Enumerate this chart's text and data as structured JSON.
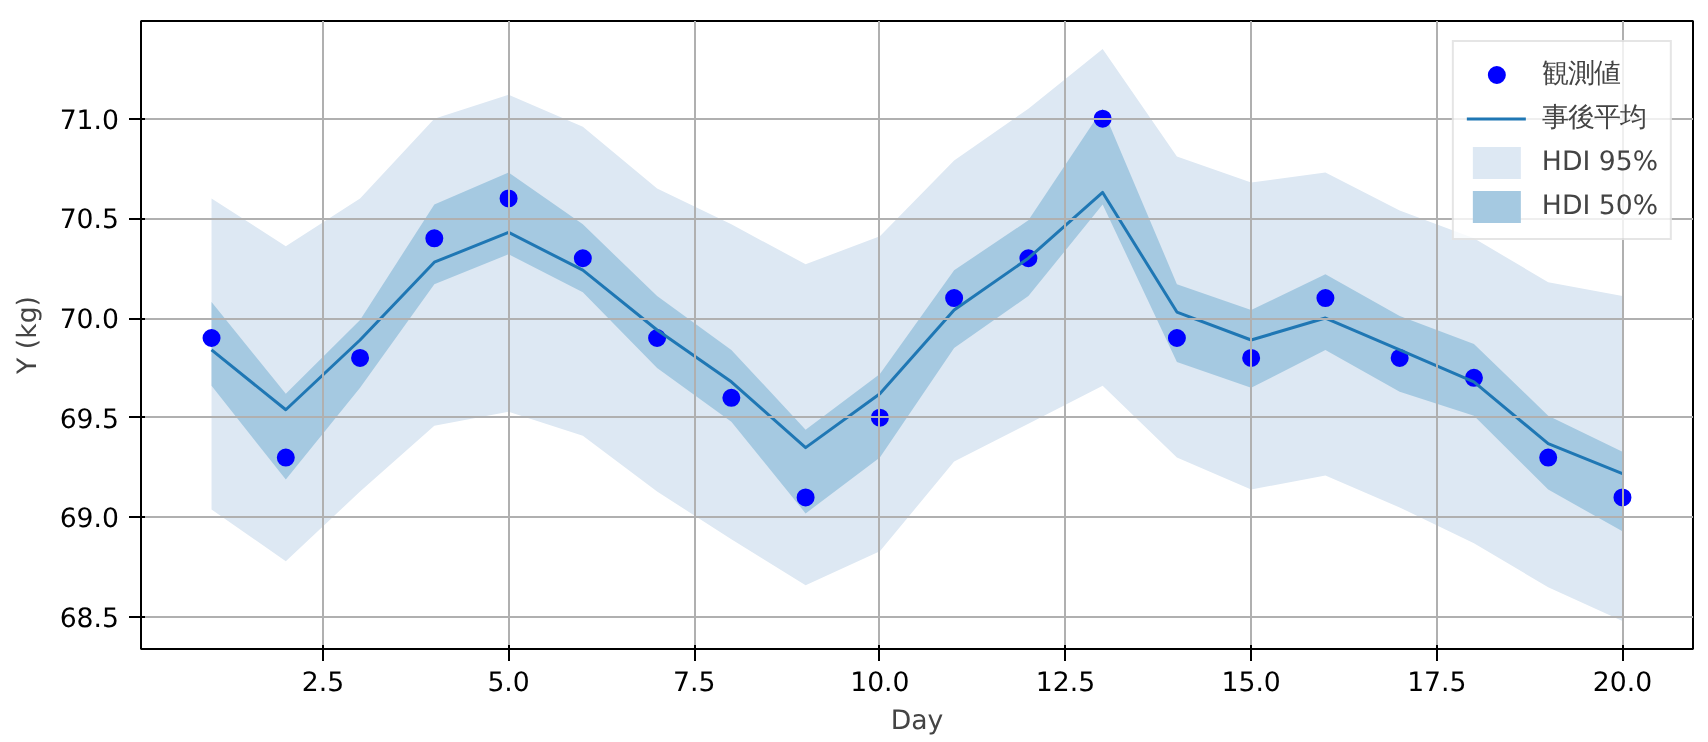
{
  "chart_data": {
    "type": "line",
    "xlabel": "Day",
    "ylabel": "Y (kg)",
    "x": [
      1,
      2,
      3,
      4,
      5,
      6,
      7,
      8,
      9,
      10,
      11,
      12,
      13,
      14,
      15,
      16,
      17,
      18,
      19,
      20
    ],
    "series": [
      {
        "name": "観測値",
        "type": "scatter",
        "color": "#0000ff",
        "marker": "circle",
        "values": [
          69.9,
          69.3,
          69.8,
          70.4,
          70.6,
          70.3,
          69.9,
          69.6,
          69.1,
          69.5,
          70.1,
          70.3,
          71.0,
          69.9,
          69.8,
          70.1,
          69.8,
          69.7,
          69.3,
          69.1
        ]
      },
      {
        "name": "事後平均",
        "color": "#1f77b4",
        "values": [
          69.84,
          69.54,
          69.89,
          70.28,
          70.43,
          70.24,
          69.94,
          69.68,
          69.35,
          69.62,
          70.04,
          70.3,
          70.63,
          70.03,
          69.89,
          70.0,
          69.84,
          69.68,
          69.37,
          69.22
        ]
      },
      {
        "name": "HDI 95%",
        "color": "#dde8f3",
        "values": [
          null,
          null,
          null,
          null,
          null,
          null,
          null,
          null,
          null,
          null,
          null,
          null,
          null,
          null,
          null,
          null,
          null,
          null,
          null,
          null
        ],
        "upper": [
          70.6,
          70.36,
          70.6,
          71.0,
          71.12,
          70.96,
          70.65,
          70.47,
          70.27,
          70.41,
          70.79,
          71.05,
          71.35,
          70.81,
          70.68,
          70.73,
          70.54,
          70.4,
          70.18,
          70.11
        ],
        "lower": [
          69.04,
          68.78,
          69.13,
          69.46,
          69.53,
          69.41,
          69.13,
          68.89,
          68.66,
          68.83,
          69.28,
          69.47,
          69.66,
          69.3,
          69.14,
          69.21,
          69.05,
          68.87,
          68.65,
          68.48
        ]
      },
      {
        "name": "HDI 50%",
        "color": "#a5c9e1",
        "values": [
          null,
          null,
          null,
          null,
          null,
          null,
          null,
          null,
          null,
          null,
          null,
          null,
          null,
          null,
          null,
          null,
          null,
          null,
          null,
          null
        ],
        "upper": [
          70.08,
          69.62,
          69.99,
          70.57,
          70.73,
          70.47,
          70.11,
          69.84,
          69.44,
          69.72,
          70.24,
          70.49,
          71.05,
          70.17,
          70.04,
          70.22,
          70.01,
          69.87,
          69.51,
          69.33
        ],
        "lower": [
          69.66,
          69.19,
          69.65,
          70.17,
          70.32,
          70.13,
          69.75,
          69.48,
          69.02,
          69.3,
          69.85,
          70.11,
          70.57,
          69.78,
          69.65,
          69.84,
          69.63,
          69.51,
          69.14,
          68.93
        ]
      }
    ],
    "xlim": [
      0.05,
      20.95
    ],
    "ylim": [
      68.34,
      71.49
    ],
    "xticks": [
      2.5,
      {
        "value": 5,
        "label": "5.0"
      },
      7.5,
      {
        "value": 10,
        "label": "10.0"
      },
      12.5,
      {
        "value": 15,
        "label": "15.0"
      },
      17.5,
      {
        "value": 20,
        "label": "20.0"
      }
    ],
    "yticks": [
      68.5,
      {
        "value": 69,
        "label": "69.0"
      },
      69.5,
      {
        "value": 70,
        "label": "70.0"
      },
      70.5,
      {
        "value": 71,
        "label": "71.0"
      }
    ],
    "grid": true,
    "legend": "top right"
  }
}
